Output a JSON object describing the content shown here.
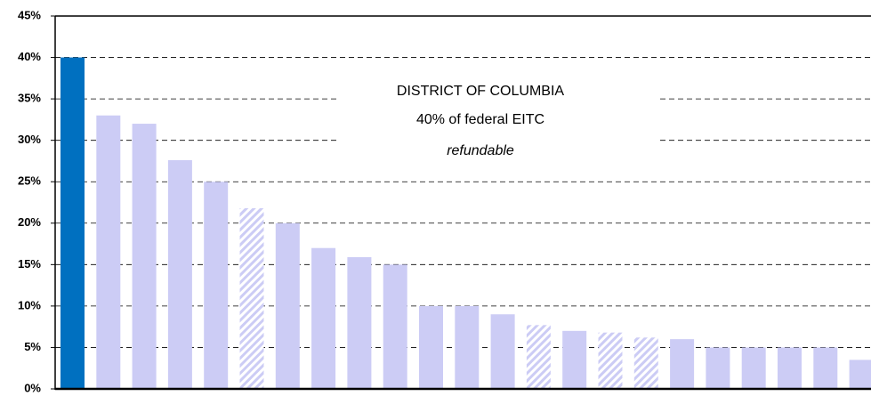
{
  "chart_data": {
    "type": "bar",
    "categories": [
      null,
      null,
      null,
      null,
      null,
      null,
      null,
      null,
      null,
      null,
      null,
      null,
      null,
      null,
      null,
      null,
      null,
      null,
      null,
      null,
      null,
      null,
      null
    ],
    "values": [
      40,
      33,
      32,
      27.6,
      25,
      21.8,
      20,
      17,
      15.9,
      15,
      10,
      10,
      9,
      7.7,
      7,
      6.8,
      6.2,
      6,
      5,
      5,
      5,
      5,
      3.5
    ],
    "colors": [
      "#0070c0",
      "#ccccf5",
      "#ccccf5",
      "#ccccf5",
      "#ccccf5",
      "#ccccf5",
      "#ccccf5",
      "#ccccf5",
      "#ccccf5",
      "#ccccf5",
      "#ccccf5",
      "#ccccf5",
      "#ccccf5",
      "#ccccf5",
      "#ccccf5",
      "#ccccf5",
      "#ccccf5",
      "#ccccf5",
      "#ccccf5",
      "#ccccf5",
      "#ccccf5",
      "#ccccf5",
      "#ccccf5"
    ],
    "hatched": [
      false,
      false,
      false,
      false,
      false,
      true,
      false,
      false,
      false,
      false,
      false,
      false,
      false,
      true,
      false,
      true,
      true,
      false,
      false,
      false,
      false,
      false,
      false
    ],
    "ylim": [
      0,
      45
    ],
    "yticks": [
      {
        "value": 0,
        "label": "0%"
      },
      {
        "value": 5,
        "label": "5%"
      },
      {
        "value": 10,
        "label": "10%"
      },
      {
        "value": 15,
        "label": "15%"
      },
      {
        "value": 20,
        "label": "20%"
      },
      {
        "value": 25,
        "label": "25%"
      },
      {
        "value": 30,
        "label": "30%"
      },
      {
        "value": 35,
        "label": "35%"
      },
      {
        "value": 40,
        "label": "40%"
      },
      {
        "value": 45,
        "label": "45%"
      }
    ],
    "grid": true,
    "annotation": [
      "DISTRICT OF COLUMBIA",
      "40% of federal EITC",
      "refundable"
    ]
  }
}
